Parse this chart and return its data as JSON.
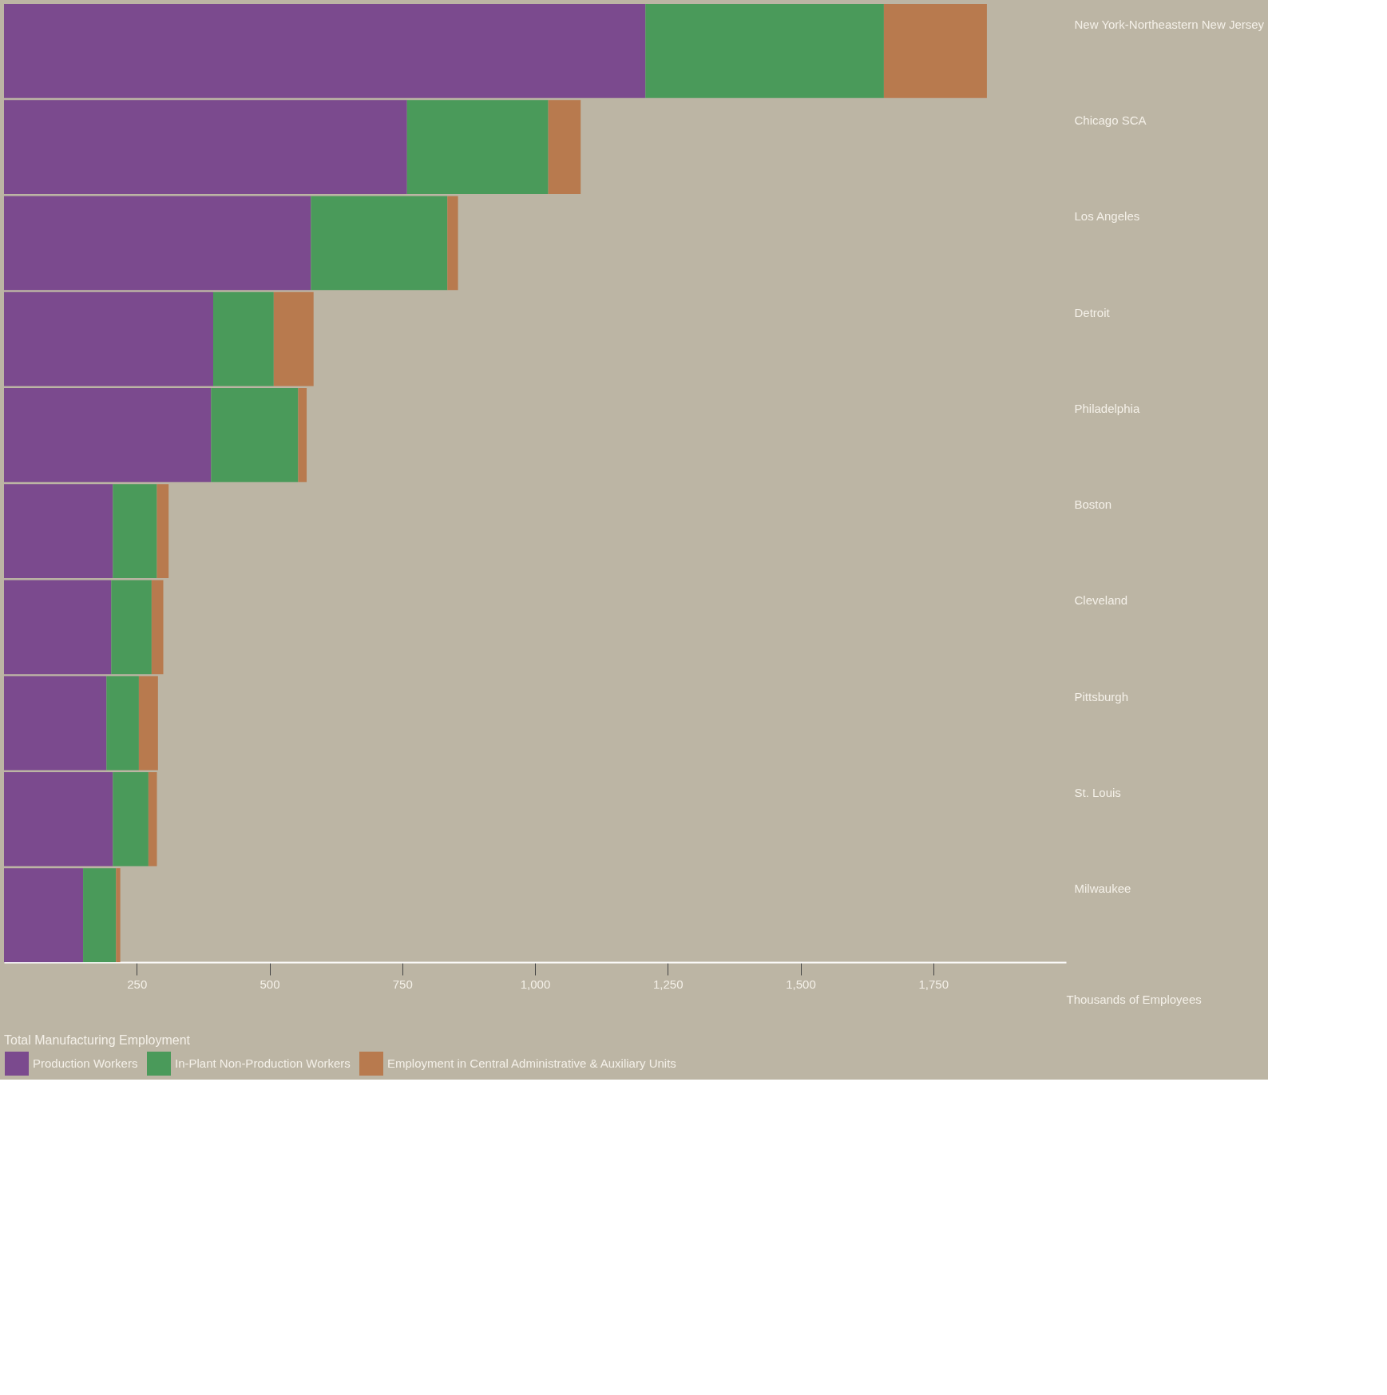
{
  "chart_data": {
    "type": "bar",
    "orientation": "horizontal",
    "stacked": true,
    "xlabel": "Thousands of Employees",
    "legend_title": "Total Manufacturing Employment",
    "legend": "bottom left",
    "categories": [
      "New York-Northeastern New Jersey",
      "Chicago SCA",
      "Los Angeles",
      "Detroit",
      "Philadelphia",
      "Boston",
      "Cleveland",
      "Pittsburgh",
      "St. Louis",
      "Milwaukee"
    ],
    "series": [
      {
        "name": "Production Workers",
        "color": "#7b4a8e",
        "values": [
          1208,
          759,
          578,
          394,
          390,
          205,
          202,
          193,
          205,
          149
        ]
      },
      {
        "name": "In-Plant Non-Production Workers",
        "color": "#4a9a5a",
        "values": [
          449,
          266,
          257,
          114,
          164,
          83,
          76,
          61,
          67,
          62
        ]
      },
      {
        "name": "Employment in Central Administrative & Auxiliary Units",
        "color": "#b87a4e",
        "values": [
          194,
          61,
          20,
          75,
          16,
          22,
          22,
          36,
          16,
          8
        ]
      }
    ],
    "xlim": [
      0,
      2000
    ],
    "xticks": [
      250,
      500,
      750,
      {
        "value": 1000,
        "label": "1,000"
      },
      {
        "value": 1250,
        "label": "1,250"
      },
      {
        "value": 1500,
        "label": "1,500"
      },
      {
        "value": 1750,
        "label": "1,750"
      }
    ],
    "grid": false
  }
}
